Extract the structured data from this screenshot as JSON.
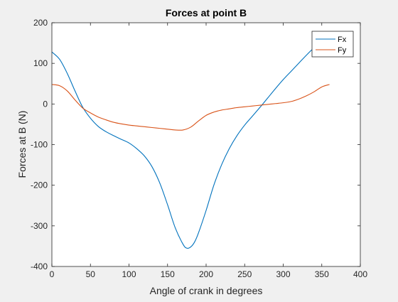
{
  "chart_data": {
    "type": "line",
    "title": "Forces at point B",
    "xlabel": "Angle of crank in degrees",
    "ylabel": "Forces at B (N)",
    "xlim": [
      0,
      400
    ],
    "ylim": [
      -400,
      200
    ],
    "xticks": [
      0,
      50,
      100,
      150,
      200,
      250,
      300,
      350,
      400
    ],
    "yticks": [
      -400,
      -300,
      -200,
      -100,
      0,
      100,
      200
    ],
    "grid": false,
    "legend_position": "top-right",
    "series": [
      {
        "name": "Fx",
        "color": "#0072BD",
        "x": [
          0,
          10,
          20,
          30,
          40,
          50,
          60,
          70,
          80,
          90,
          100,
          110,
          120,
          130,
          140,
          150,
          160,
          170,
          175,
          180,
          185,
          190,
          200,
          210,
          220,
          230,
          240,
          250,
          260,
          270,
          280,
          290,
          300,
          310,
          320,
          330,
          340,
          350,
          360
        ],
        "y": [
          128,
          110,
          75,
          32,
          -8,
          -35,
          -55,
          -68,
          -78,
          -87,
          -96,
          -110,
          -128,
          -155,
          -195,
          -248,
          -305,
          -345,
          -355,
          -352,
          -340,
          -318,
          -262,
          -200,
          -150,
          -110,
          -78,
          -52,
          -30,
          -8,
          15,
          38,
          60,
          80,
          100,
          120,
          138,
          148,
          150
        ]
      },
      {
        "name": "Fy",
        "color": "#D95319",
        "x": [
          0,
          10,
          20,
          30,
          40,
          50,
          60,
          70,
          80,
          90,
          100,
          110,
          120,
          130,
          140,
          150,
          160,
          170,
          180,
          190,
          200,
          210,
          220,
          230,
          240,
          250,
          260,
          270,
          280,
          290,
          300,
          310,
          320,
          330,
          340,
          350,
          360
        ],
        "y": [
          48,
          45,
          32,
          10,
          -10,
          -22,
          -32,
          -39,
          -45,
          -49,
          -52,
          -54,
          -56,
          -58,
          -60,
          -62,
          -64,
          -64,
          -57,
          -42,
          -28,
          -20,
          -15,
          -12,
          -9,
          -7,
          -5,
          -3,
          -1,
          1,
          3,
          6,
          12,
          20,
          30,
          42,
          48
        ]
      }
    ]
  }
}
